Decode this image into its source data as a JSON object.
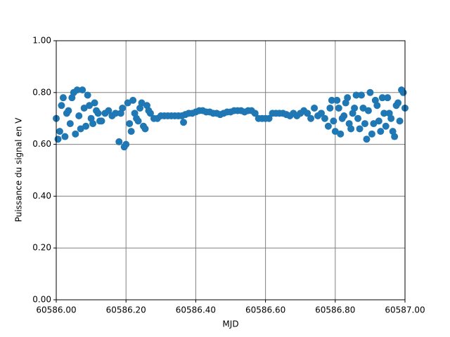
{
  "chart_data": {
    "type": "scatter",
    "xlabel": "MJD",
    "ylabel": "Puissance du signal en V",
    "color": "#1f77b4",
    "grid": true,
    "grid_color": "#808080",
    "xlim": [
      60586.0,
      60587.0
    ],
    "xticks": [
      {
        "value": 60586.0,
        "label": "60586.00"
      },
      {
        "value": 60586.2,
        "label": "60586.20"
      },
      {
        "value": 60586.4,
        "label": "60586.40"
      },
      {
        "value": 60586.6,
        "label": "60586.60"
      },
      {
        "value": 60586.8,
        "label": "60586.80"
      },
      {
        "value": 60587.0,
        "label": "60587.00"
      }
    ],
    "ylim": [
      0,
      1
    ],
    "yticks": [
      {
        "value": 0,
        "label": "0.00"
      },
      {
        "value": 0.2,
        "label": "0.20"
      },
      {
        "value": 0.4,
        "label": "0.40"
      },
      {
        "value": 0.6,
        "label": "0.60"
      },
      {
        "value": 0.8,
        "label": "0.80"
      },
      {
        "value": 1,
        "label": "1.00"
      }
    ],
    "x": [
      60586.0,
      60586.01,
      60586.02,
      60586.03,
      60586.04,
      60586.05,
      60586.06,
      60586.07,
      60586.08,
      60586.09,
      60586.1,
      60586.11,
      60586.12,
      60586.13,
      60586.14,
      60586.15,
      60586.16,
      60586.17,
      60586.18,
      60586.19,
      60586.2,
      60586.21,
      60586.22,
      60586.23,
      60586.24,
      60586.25,
      60586.26,
      60586.27,
      60586.28,
      60586.29,
      60586.3,
      60586.31,
      60586.32,
      60586.33,
      60586.34,
      60586.35,
      60586.36,
      60586.37,
      60586.38,
      60586.39,
      60586.4,
      60586.41,
      60586.42,
      60586.43,
      60586.44,
      60586.45,
      60586.46,
      60586.47,
      60586.48,
      60586.49,
      60586.5,
      60586.51,
      60586.52,
      60586.53,
      60586.54,
      60586.55,
      60586.56,
      60586.57,
      60586.58,
      60586.59,
      60586.6,
      60586.61,
      60586.62,
      60586.63,
      60586.64,
      60586.65,
      60586.66,
      60586.67,
      60586.68,
      60586.69,
      60586.7,
      60586.71,
      60586.72,
      60586.73,
      60586.74,
      60586.75,
      60586.76,
      60586.77,
      60586.78,
      60586.79,
      60586.8,
      60586.81,
      60586.82,
      60586.83,
      60586.84,
      60586.85,
      60586.86,
      60586.87,
      60586.88,
      60586.89,
      60586.9,
      60586.91,
      60586.92,
      60586.93,
      60586.94,
      60586.95,
      60586.96,
      60586.97,
      60586.98,
      60586.99,
      60587.0,
      60586.005,
      60586.015,
      60586.025,
      60586.035,
      60586.045,
      60586.055,
      60586.065,
      60586.075,
      60586.085,
      60586.095,
      60586.105,
      60586.115,
      60586.125,
      60586.185,
      60586.195,
      60586.205,
      60586.215,
      60586.225,
      60586.235,
      60586.245,
      60586.255,
      60586.265,
      60586.365,
      60586.785,
      60586.795,
      60586.805,
      60586.815,
      60586.825,
      60586.835,
      60586.845,
      60586.855,
      60586.865,
      60586.875,
      60586.885,
      60586.895,
      60586.905,
      60586.915,
      60586.925,
      60586.935,
      60586.945,
      60586.955,
      60586.965,
      60586.975,
      60586.985,
      60586.995
    ],
    "values": [
      0.7,
      0.65,
      0.78,
      0.72,
      0.68,
      0.8,
      0.81,
      0.66,
      0.74,
      0.79,
      0.7,
      0.76,
      0.72,
      0.69,
      0.72,
      0.73,
      0.71,
      0.72,
      0.61,
      0.74,
      0.6,
      0.68,
      0.77,
      0.7,
      0.74,
      0.67,
      0.75,
      0.72,
      0.7,
      0.7,
      0.71,
      0.71,
      0.71,
      0.71,
      0.71,
      0.71,
      0.71,
      0.715,
      0.72,
      0.72,
      0.725,
      0.73,
      0.73,
      0.725,
      0.725,
      0.72,
      0.72,
      0.715,
      0.72,
      0.725,
      0.725,
      0.73,
      0.73,
      0.73,
      0.725,
      0.73,
      0.73,
      0.72,
      0.7,
      0.7,
      0.7,
      0.7,
      0.72,
      0.72,
      0.72,
      0.72,
      0.715,
      0.71,
      0.72,
      0.71,
      0.72,
      0.73,
      0.72,
      0.7,
      0.74,
      0.71,
      0.72,
      0.7,
      0.67,
      0.77,
      0.65,
      0.74,
      0.7,
      0.76,
      0.68,
      0.72,
      0.79,
      0.66,
      0.74,
      0.62,
      0.8,
      0.68,
      0.75,
      0.65,
      0.72,
      0.78,
      0.7,
      0.63,
      0.76,
      0.81,
      0.74,
      0.62,
      0.75,
      0.63,
      0.73,
      0.78,
      0.64,
      0.71,
      0.81,
      0.67,
      0.75,
      0.68,
      0.73,
      0.69,
      0.72,
      0.59,
      0.76,
      0.65,
      0.72,
      0.69,
      0.76,
      0.66,
      0.73,
      0.685,
      0.74,
      0.69,
      0.77,
      0.64,
      0.71,
      0.78,
      0.66,
      0.74,
      0.7,
      0.79,
      0.68,
      0.73,
      0.64,
      0.77,
      0.69,
      0.78,
      0.67,
      0.72,
      0.65,
      0.75,
      0.69,
      0.8
    ]
  }
}
